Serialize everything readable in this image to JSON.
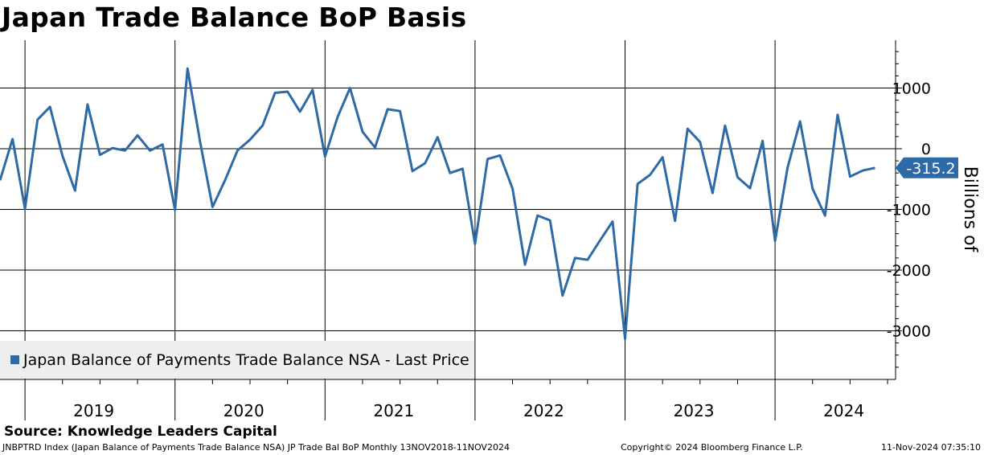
{
  "chart_data": {
    "type": "line",
    "title": "Japan Trade Balance BoP Basis",
    "ylabel": "Billions of",
    "xlabel": "",
    "ylim": [
      -3800,
      1750
    ],
    "yticks": [
      1000,
      0,
      -1000,
      -2000,
      -3000
    ],
    "years": [
      "2019",
      "2020",
      "2021",
      "2022",
      "2023",
      "2024"
    ],
    "start": "2018-11",
    "series": [
      {
        "name": "Japan Balance of Payments Trade Balance NSA - Last Price",
        "color": "#2e6aa6",
        "values": [
          -520,
          160,
          -990,
          480,
          690,
          -120,
          -690,
          730,
          -100,
          10,
          -30,
          220,
          -30,
          70,
          -1010,
          1320,
          120,
          -960,
          -520,
          -30,
          150,
          380,
          920,
          940,
          610,
          970,
          -130,
          520,
          1000,
          280,
          20,
          650,
          620,
          -370,
          -240,
          190,
          -400,
          -330,
          -1570,
          -170,
          -110,
          -660,
          -1910,
          -1100,
          -1180,
          -2420,
          -1800,
          -1830,
          -1510,
          -1200,
          -3130,
          -580,
          -430,
          -140,
          -1190,
          330,
          110,
          -730,
          380,
          -470,
          -650,
          130,
          -1520,
          -310,
          450,
          -660,
          -1100,
          560,
          -460,
          -360,
          -315.2
        ]
      }
    ],
    "last_value": "-315.2",
    "legend": "Japan Balance of Payments Trade Balance NSA - Last Price"
  },
  "source": "Source: Knowledge Leaders Capital",
  "footer": {
    "left": "JNBPTRD Index (Japan Balance of Payments Trade Balance NSA) JP Trade Bal BoP  Monthly 13NOV2018-11NOV2024",
    "middle": "Copyright© 2024 Bloomberg Finance L.P.",
    "right": "11-Nov-2024 07:35:10"
  },
  "colors": {
    "line": "#2e6aa6",
    "label_bg": "#2e6aa6",
    "legend_bg": "#efefef"
  }
}
